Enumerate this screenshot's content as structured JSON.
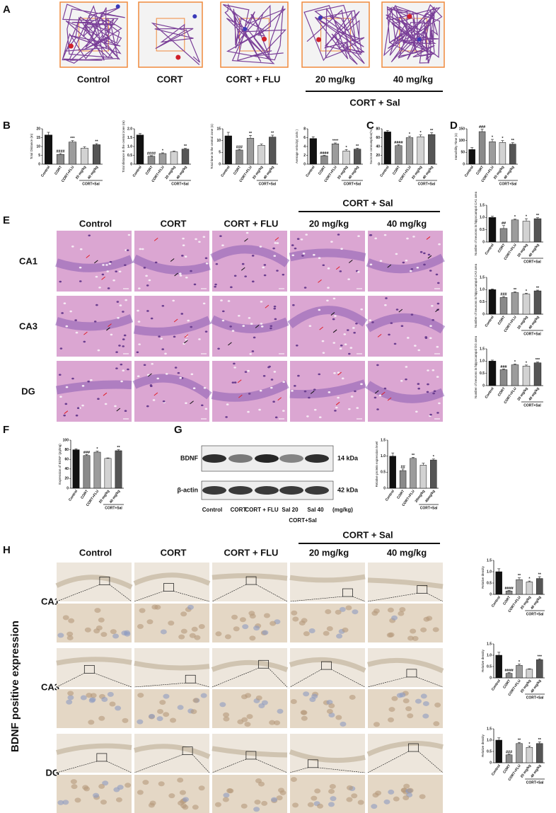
{
  "panel_letters": [
    "A",
    "B",
    "C",
    "D",
    "E",
    "F",
    "G",
    "H"
  ],
  "panel_A": {
    "columns": [
      "Control",
      "CORT",
      "CORT + FLU",
      "20 mg/kg",
      "40 mg/kg"
    ],
    "group_label": "CORT + Sal"
  },
  "panel_E": {
    "columns": [
      "Control",
      "CORT",
      "CORT + FLU",
      "20 mg/kg",
      "40 mg/kg"
    ],
    "group_label": "CORT + Sal",
    "rows": [
      "CA1",
      "CA3",
      "DG"
    ]
  },
  "panel_G": {
    "bands": [
      "BDNF",
      "β-actin"
    ],
    "sizes": [
      "14 kDa",
      "42 kDa"
    ],
    "lanes": [
      "Control",
      "CORT",
      "CORT + FLU",
      "Sal 20",
      "Sal 40"
    ],
    "unit": "(mg/kg)",
    "group_label": "CORT+Sal"
  },
  "panel_H": {
    "columns": [
      "Control",
      "CORT",
      "CORT + FLU",
      "20 mg/kg",
      "40 mg/kg"
    ],
    "group_label": "CORT + Sal",
    "rows": [
      "CA1",
      "CA3",
      "DG"
    ],
    "side_label": "BDNF positive expression"
  },
  "chart_data": [
    {
      "type": "bar",
      "ylabel": "Total Distance (m)",
      "categories": [
        "Control",
        "CORT",
        "CORT+FLU",
        "20 mg/kg",
        "40 mg/kg"
      ],
      "group_label": "CORT+Sal",
      "values": [
        16.5,
        5.5,
        12.5,
        9,
        11
      ],
      "errors": [
        1.5,
        0.5,
        0.8,
        0.8,
        0.6
      ],
      "annotations": [
        null,
        "####",
        "***",
        null,
        "**"
      ],
      "colors": [
        "#111111",
        "#8a8a8a",
        "#9c9c9c",
        "#d2d2d2",
        "#555555"
      ],
      "ylim": [
        0,
        20
      ],
      "yticks": [
        0,
        5,
        10,
        15,
        20
      ]
    },
    {
      "type": "bar",
      "ylabel": "Total distance in the central zone (m)",
      "categories": [
        "Control",
        "CORT",
        "CORT+FLU",
        "20 mg/kg",
        "40 mg/kg"
      ],
      "group_label": "CORT+Sal",
      "values": [
        1.65,
        0.45,
        0.6,
        0.7,
        0.85
      ],
      "errors": [
        0.08,
        0.03,
        0.04,
        0.04,
        0.04
      ],
      "annotations": [
        null,
        "####",
        "*",
        null,
        "**"
      ],
      "colors": [
        "#111111",
        "#8a8a8a",
        "#9c9c9c",
        "#d2d2d2",
        "#555555"
      ],
      "ylim": [
        0,
        2.0
      ],
      "yticks": [
        0,
        0.5,
        {
          "value": 1.0,
          "label": "1.0"
        },
        1.5,
        {
          "value": 2.0,
          "label": "2.0"
        }
      ]
    },
    {
      "type": "bar",
      "ylabel": "Total time in the central zone (s)",
      "categories": [
        "Control",
        "CORT",
        "CORT+FLU",
        "20 mg/kg",
        "40 mg/kg"
      ],
      "group_label": "CORT+Sal",
      "values": [
        12,
        6,
        11,
        8,
        11.5
      ],
      "errors": [
        1.5,
        0.3,
        1.2,
        0.5,
        0.8
      ],
      "annotations": [
        null,
        "###",
        "**",
        null,
        "**"
      ],
      "colors": [
        "#111111",
        "#8a8a8a",
        "#9c9c9c",
        "#d2d2d2",
        "#555555"
      ],
      "ylim": [
        0,
        15
      ],
      "yticks": [
        0,
        5,
        10,
        15
      ]
    },
    {
      "type": "bar",
      "ylabel": "Average velocity( cm/s )",
      "categories": [
        "Control",
        "CORT",
        "CORT+FLU",
        "20 mg/kg",
        "40 mg/kg"
      ],
      "group_label": "CORT+Sal",
      "values": [
        5.8,
        1.9,
        4.6,
        3.0,
        3.4
      ],
      "errors": [
        0.4,
        0.1,
        0.2,
        0.3,
        0.2
      ],
      "annotations": [
        null,
        "####",
        "****",
        "*",
        "**"
      ],
      "colors": [
        "#111111",
        "#8a8a8a",
        "#9c9c9c",
        "#d2d2d2",
        "#555555"
      ],
      "ylim": [
        0,
        8
      ],
      "yticks": [
        0,
        2,
        4,
        6,
        8
      ]
    },
    {
      "type": "bar",
      "ylabel": "Sucrose consumption(%)",
      "categories": [
        "Control",
        "CORT",
        "CORT+FLU",
        "20 mg/kg",
        "40 mg/kg"
      ],
      "group_label": "CORT+Sal",
      "values": [
        73,
        42,
        60,
        62,
        67
      ],
      "errors": [
        3,
        2,
        3,
        4,
        4
      ],
      "annotations": [
        null,
        "####",
        "*",
        "*",
        "**"
      ],
      "colors": [
        "#111111",
        "#8a8a8a",
        "#9c9c9c",
        "#d2d2d2",
        "#555555"
      ],
      "ylim": [
        0,
        80
      ],
      "yticks": [
        0,
        20,
        40,
        60,
        80
      ]
    },
    {
      "type": "bar",
      "ylabel": "Immobility Time (s)",
      "categories": [
        "Control",
        "CORT",
        "CORT+FLU",
        "20 mg/kg",
        "40 mg/kg"
      ],
      "group_label": "CORT+Sal",
      "values": [
        62,
        138,
        95,
        92,
        85
      ],
      "errors": [
        8,
        10,
        10,
        8,
        6
      ],
      "annotations": [
        null,
        "###",
        "*",
        "*",
        "**"
      ],
      "colors": [
        "#111111",
        "#8a8a8a",
        "#9c9c9c",
        "#d2d2d2",
        "#555555"
      ],
      "ylim": [
        0,
        150
      ],
      "yticks": [
        0,
        50,
        100,
        150
      ]
    },
    {
      "type": "bar",
      "ylabel": "Number of neurons in hippocampal CA1 area",
      "categories": [
        "Control",
        "CORT",
        "CORT+FLU",
        "20 mg/kg",
        "40 mg/kg"
      ],
      "group_label": "CORT+Sal",
      "values": [
        1.0,
        0.55,
        0.9,
        0.85,
        0.95
      ],
      "errors": [
        0.05,
        0.12,
        0.03,
        0.1,
        0.04
      ],
      "annotations": [
        null,
        "##",
        "*",
        "*",
        "**"
      ],
      "colors": [
        "#111111",
        "#8a8a8a",
        "#9c9c9c",
        "#d2d2d2",
        "#555555"
      ],
      "ylim": [
        0,
        1.5
      ],
      "yticks": [
        0,
        0.5,
        {
          "value": 1.0,
          "label": "1.0"
        },
        1.5
      ]
    },
    {
      "type": "bar",
      "ylabel": "Number of neurons in hippocampal CA3 area",
      "categories": [
        "Control",
        "CORT",
        "CORT+FLU",
        "20 mg/kg",
        "40 mg/kg"
      ],
      "group_label": "CORT+Sal",
      "values": [
        1.0,
        0.68,
        0.88,
        0.82,
        0.95
      ],
      "errors": [
        0.03,
        0.04,
        0.03,
        0.03,
        0.03
      ],
      "annotations": [
        null,
        "###",
        "**",
        "*",
        "**"
      ],
      "colors": [
        "#111111",
        "#8a8a8a",
        "#9c9c9c",
        "#d2d2d2",
        "#555555"
      ],
      "ylim": [
        0,
        1.5
      ],
      "yticks": [
        0,
        0.5,
        {
          "value": 1.0,
          "label": "1.0"
        },
        1.5
      ]
    },
    {
      "type": "bar",
      "ylabel": "Number of neurons in hippocampal DG area",
      "categories": [
        "Control",
        "CORT",
        "CORT+FLU",
        "20 mg/kg",
        "40 mg/kg"
      ],
      "group_label": "CORT+Sal",
      "values": [
        1.0,
        0.65,
        0.85,
        0.8,
        0.93
      ],
      "errors": [
        0.04,
        0.03,
        0.03,
        0.04,
        0.03
      ],
      "annotations": [
        null,
        "###",
        "*",
        "*",
        "***"
      ],
      "colors": [
        "#111111",
        "#8a8a8a",
        "#9c9c9c",
        "#d2d2d2",
        "#555555"
      ],
      "ylim": [
        0,
        1.5
      ],
      "yticks": [
        0,
        0.5,
        {
          "value": 1.0,
          "label": "1.0"
        },
        1.5
      ]
    },
    {
      "type": "bar",
      "ylabel": "Expression of BDNF (pg/mg)",
      "categories": [
        "Control",
        "CORT",
        "CORT+FLU",
        "20 mg/kg",
        "40 mg/kg"
      ],
      "group_label": "CORT+Sal",
      "values": [
        80,
        68,
        75,
        62,
        78
      ],
      "errors": [
        2,
        2,
        2,
        1,
        2
      ],
      "annotations": [
        null,
        "###",
        "*",
        null,
        "**"
      ],
      "colors": [
        "#111111",
        "#8a8a8a",
        "#9c9c9c",
        "#d2d2d2",
        "#555555"
      ],
      "ylim": [
        0,
        100
      ],
      "yticks": [
        0,
        20,
        40,
        60,
        80,
        100
      ]
    },
    {
      "type": "bar",
      "ylabel": "Relative protein expression level",
      "categories": [
        "Control",
        "CORT",
        "CORT+FLU",
        "20mg/kg",
        "40mg/kg"
      ],
      "group_label": "CORT+Sal",
      "values": [
        1.0,
        0.55,
        0.93,
        0.72,
        0.88
      ],
      "errors": [
        0.1,
        0.05,
        0.03,
        0.06,
        0.03
      ],
      "annotations": [
        null,
        "##",
        "**",
        null,
        "*"
      ],
      "colors": [
        "#111111",
        "#8a8a8a",
        "#9c9c9c",
        "#d2d2d2",
        "#555555"
      ],
      "ylim": [
        0,
        1.5
      ],
      "yticks": [
        0,
        0.5,
        {
          "value": 1.0,
          "label": "1.0"
        },
        1.5
      ]
    },
    {
      "type": "bar",
      "ylabel": "Relative density",
      "categories": [
        "Control",
        "CORT",
        "CORT+FLU",
        "20 mg/kg",
        "40 mg/kg"
      ],
      "group_label": "CORT+Sal",
      "values": [
        1.0,
        0.15,
        0.65,
        0.55,
        0.7
      ],
      "errors": [
        0.13,
        0.02,
        0.08,
        0.04,
        0.08
      ],
      "annotations": [
        null,
        "####",
        "**",
        "*",
        "**"
      ],
      "colors": [
        "#111111",
        "#8a8a8a",
        "#9c9c9c",
        "#d2d2d2",
        "#555555"
      ],
      "ylim": [
        0,
        1.5
      ],
      "yticks": [
        0,
        0.5,
        {
          "value": 1.0,
          "label": "1.0"
        },
        1.5
      ]
    },
    {
      "type": "bar",
      "ylabel": "Relative density",
      "categories": [
        "Control",
        "CORT",
        "CORT+FLU",
        "20 mg/kg",
        "40 mg/kg"
      ],
      "group_label": "CORT+Sal",
      "values": [
        1.0,
        0.2,
        0.55,
        0.38,
        0.8
      ],
      "errors": [
        0.13,
        0.03,
        0.06,
        0.02,
        0.04
      ],
      "annotations": [
        null,
        "####",
        "*",
        null,
        "***"
      ],
      "colors": [
        "#111111",
        "#8a8a8a",
        "#9c9c9c",
        "#d2d2d2",
        "#555555"
      ],
      "ylim": [
        0,
        1.5
      ],
      "yticks": [
        0,
        0.5,
        {
          "value": 1.0,
          "label": "1.0"
        },
        1.5
      ]
    },
    {
      "type": "bar",
      "ylabel": "Relative density",
      "categories": [
        "Control",
        "CORT",
        "CORT+FLU",
        "20 mg/kg",
        "40 mg/kg"
      ],
      "group_label": "CORT+Sal",
      "values": [
        1.0,
        0.35,
        0.85,
        0.68,
        0.85
      ],
      "errors": [
        0.1,
        0.03,
        0.05,
        0.06,
        0.07
      ],
      "annotations": [
        null,
        "###",
        "**",
        "*",
        "**"
      ],
      "colors": [
        "#111111",
        "#8a8a8a",
        "#9c9c9c",
        "#d2d2d2",
        "#555555"
      ],
      "ylim": [
        0,
        1.5
      ],
      "yticks": [
        0,
        0.5,
        {
          "value": 1.0,
          "label": "1.0"
        },
        1.5
      ]
    }
  ]
}
